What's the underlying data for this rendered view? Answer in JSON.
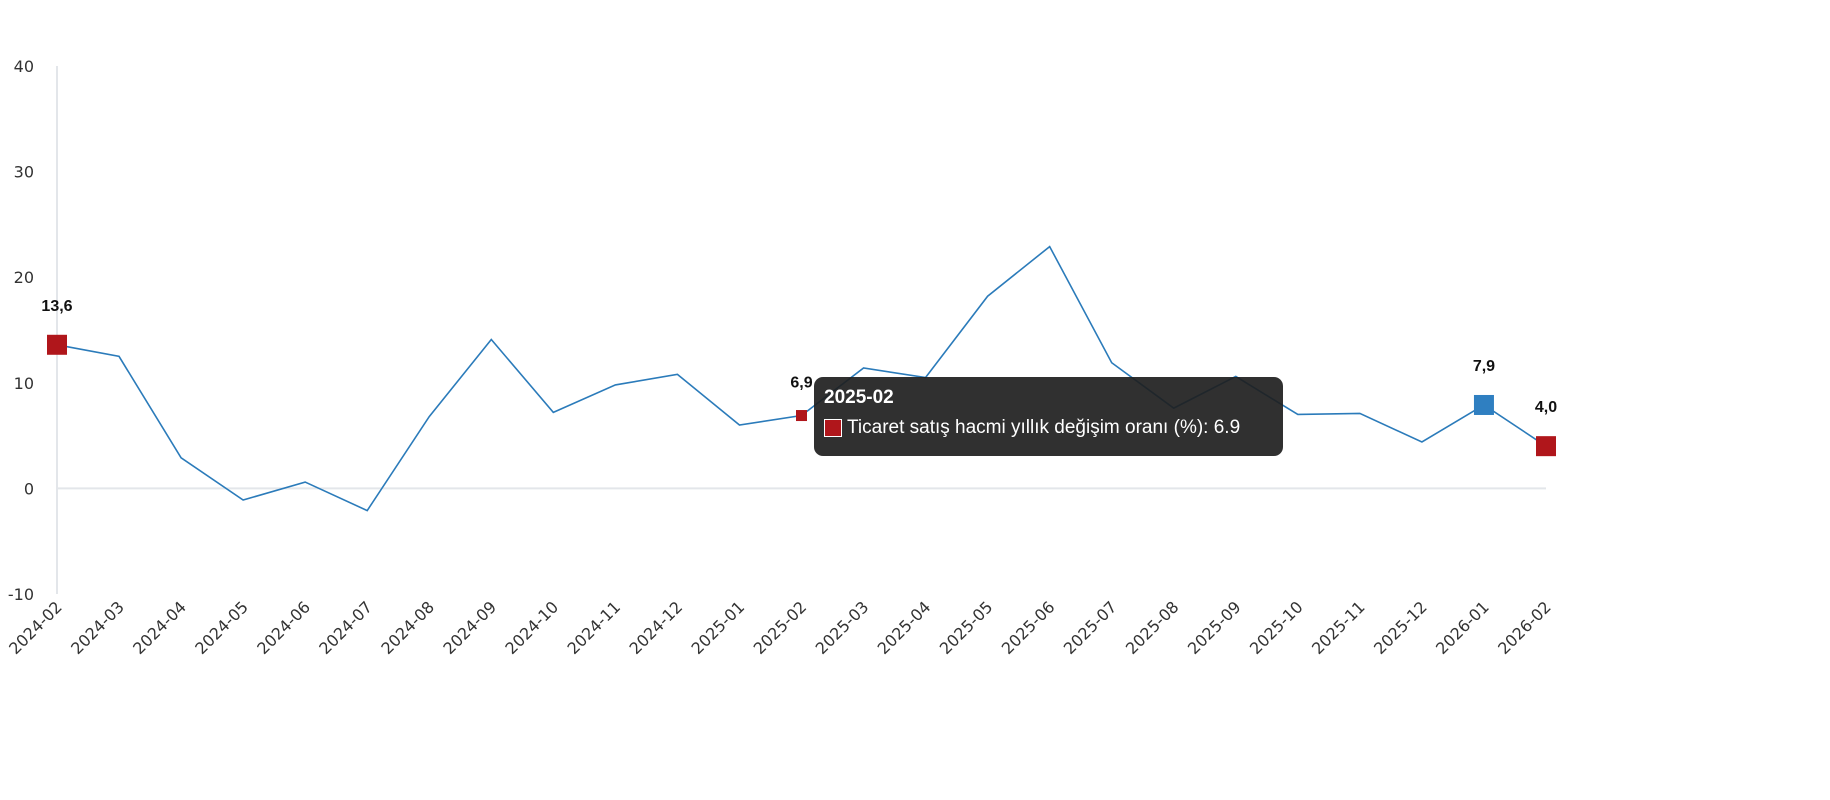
{
  "chart_data": {
    "type": "line",
    "title": "",
    "xlabel": "",
    "ylabel": "",
    "ylim": [
      -10,
      40
    ],
    "yticks": [
      40,
      30,
      20,
      10,
      0,
      -10
    ],
    "grid": false,
    "categories": [
      "2024-02",
      "2024-03",
      "2024-04",
      "2024-05",
      "2024-06",
      "2024-07",
      "2024-08",
      "2024-09",
      "2024-10",
      "2024-11",
      "2024-12",
      "2025-01",
      "2025-02",
      "2025-03",
      "2025-04",
      "2025-05",
      "2025-06",
      "2025-07",
      "2025-08",
      "2025-09",
      "2025-10",
      "2025-11",
      "2025-12",
      "2026-01",
      "2026-02"
    ],
    "series": [
      {
        "name": "Ticaret satış hacmi yıllık değişim oranı (%)",
        "values": [
          13.6,
          12.5,
          2.9,
          -1.1,
          0.6,
          -2.1,
          6.8,
          14.1,
          7.2,
          9.8,
          10.8,
          6.0,
          6.9,
          11.4,
          10.5,
          18.2,
          22.9,
          11.9,
          7.6,
          10.6,
          7.0,
          7.1,
          4.4,
          7.9,
          4.0
        ],
        "color": "#2b7bba"
      }
    ],
    "highlighted_points": [
      {
        "category": "2024-02",
        "value": 13.6,
        "label": "13,6",
        "color": "#b0161b"
      },
      {
        "category": "2025-02",
        "value": 6.9,
        "label": "6,9",
        "color": "#b0161b"
      },
      {
        "category": "2026-01",
        "value": 7.9,
        "label": "7,9",
        "color": "#2f7fc1"
      },
      {
        "category": "2026-02",
        "value": 4.0,
        "label": "4,0",
        "color": "#b0161b"
      }
    ]
  },
  "tooltip": {
    "title": "2025-02",
    "text": "Ticaret satış hacmi yıllık değişim oranı (%): 6.9",
    "color": "#b0161b"
  }
}
